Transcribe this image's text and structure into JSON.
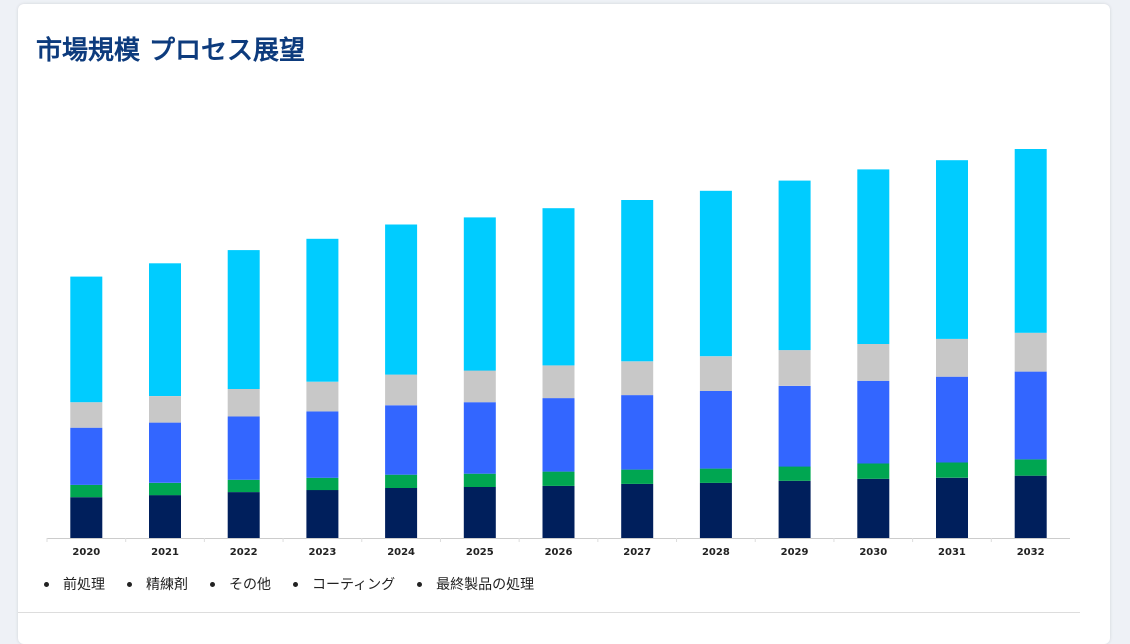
{
  "page": {
    "title": "市場規模 プロセス展望"
  },
  "legend": {
    "items": [
      {
        "label": "前処理"
      },
      {
        "label": "精練剤"
      },
      {
        "label": "その他"
      },
      {
        "label": "コーティング"
      },
      {
        "label": "最終製品の処理"
      }
    ]
  },
  "chart_data": {
    "type": "bar",
    "stacked": true,
    "title": "",
    "xlabel": "",
    "ylabel": "",
    "ylim": [
      0,
      380
    ],
    "grid": false,
    "legend_position": "bottom-left",
    "categories": [
      "2020",
      "2021",
      "2022",
      "2023",
      "2024",
      "2025",
      "2026",
      "2027",
      "2028",
      "2029",
      "2030",
      "2031",
      "2032"
    ],
    "series": [
      {
        "color": "#001f5c",
        "values": [
          40,
          42,
          45,
          47,
          49,
          50,
          51,
          53,
          54,
          56,
          58,
          59,
          61
        ]
      },
      {
        "color": "#00a651",
        "values": [
          12,
          12,
          12,
          12,
          13,
          13,
          14,
          14,
          14,
          14,
          15,
          15,
          16
        ]
      },
      {
        "color": "#3366ff",
        "values": [
          56,
          59,
          62,
          65,
          68,
          70,
          72,
          73,
          76,
          79,
          81,
          84,
          86
        ]
      },
      {
        "color": "#c8c8c8",
        "values": [
          25,
          26,
          27,
          29,
          30,
          31,
          32,
          33,
          34,
          35,
          36,
          37,
          38
        ]
      },
      {
        "color": "#00ccff",
        "values": [
          123,
          130,
          136,
          140,
          147,
          150,
          154,
          158,
          162,
          166,
          171,
          175,
          180
        ]
      }
    ]
  }
}
